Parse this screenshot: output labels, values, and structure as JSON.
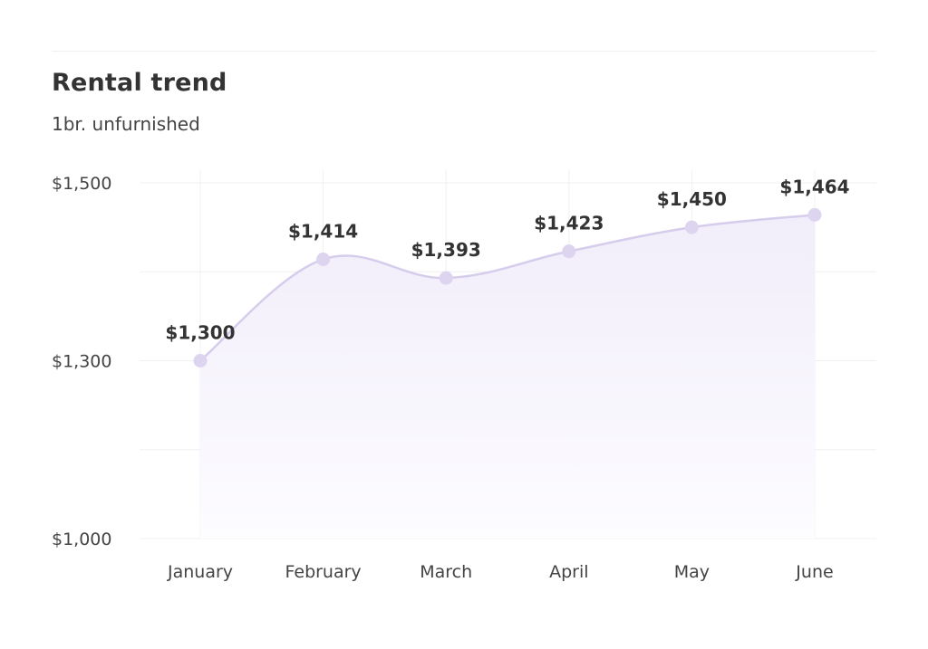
{
  "chart_data": {
    "type": "area",
    "title": "Rental trend",
    "subtitle": "1br. unfurnished",
    "categories": [
      "January",
      "February",
      "March",
      "April",
      "May",
      "June"
    ],
    "values": [
      1300,
      1414,
      1393,
      1423,
      1450,
      1464
    ],
    "data_labels": [
      "$1,300",
      "$1,414",
      "$1,393",
      "$1,423",
      "$1,450",
      "$1,464"
    ],
    "y_ticks": [
      1000,
      1300,
      1500
    ],
    "y_tick_labels": [
      "$1,000",
      "$1,300",
      "$1,500"
    ],
    "xlabel": "",
    "ylabel": "",
    "legend": "none",
    "grid": true,
    "colors": {
      "line": "#d6cdec",
      "marker": "#ddd4f0",
      "fill_top": "#f1edfa",
      "fill_bottom": "#fdfcff",
      "grid": "#f0f0f0"
    }
  }
}
